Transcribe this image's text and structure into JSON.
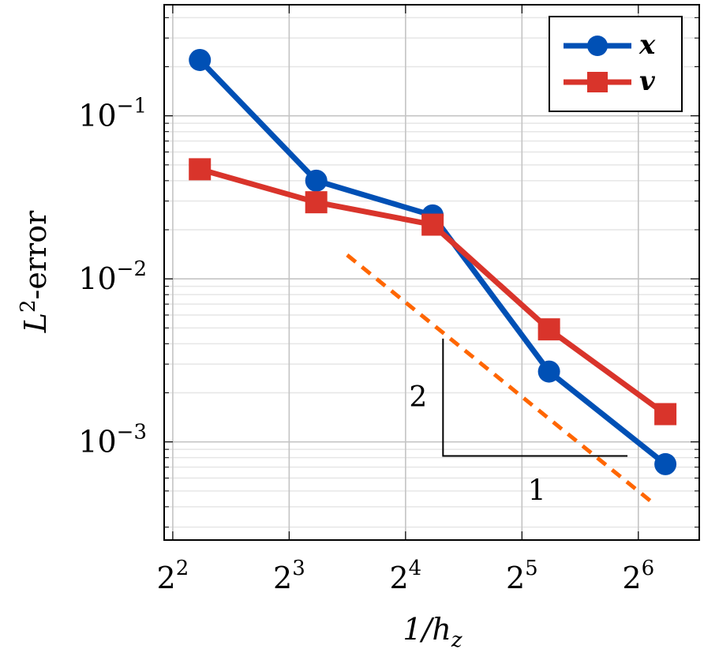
{
  "chart_data": {
    "type": "line",
    "title": "",
    "xlabel": "1/h",
    "xlabel_sub": "z",
    "ylabel": "L",
    "ylabel_sup": "2",
    "ylabel_suffix": "-error",
    "x_scale": "log2",
    "y_scale": "log10",
    "xlim": [
      3.8,
      92
    ],
    "ylim": [
      0.00025,
      0.48
    ],
    "x_ticks": [
      {
        "value": 4,
        "base": "2",
        "exp": "2"
      },
      {
        "value": 8,
        "base": "2",
        "exp": "3"
      },
      {
        "value": 16,
        "base": "2",
        "exp": "4"
      },
      {
        "value": 32,
        "base": "2",
        "exp": "5"
      },
      {
        "value": 64,
        "base": "2",
        "exp": "6"
      }
    ],
    "y_ticks": [
      {
        "value": 0.1,
        "base": "10",
        "exp": "−1"
      },
      {
        "value": 0.01,
        "base": "10",
        "exp": "−2"
      },
      {
        "value": 0.001,
        "base": "10",
        "exp": "−3"
      }
    ],
    "grid": true,
    "legend_position": "top-right",
    "x": [
      4.7,
      9.4,
      18.8,
      37.6,
      75.2
    ],
    "series": [
      {
        "name": "x",
        "marker": "circle",
        "color": "#0050b5",
        "values": [
          0.22,
          0.04,
          0.0245,
          0.0027,
          0.00073
        ]
      },
      {
        "name": "v",
        "marker": "square",
        "color": "#d9342b",
        "values": [
          0.047,
          0.0295,
          0.0215,
          0.0049,
          0.00148
        ]
      }
    ],
    "reference_line": {
      "slope": -2,
      "color": "#ff6600",
      "style": "dashed",
      "points": [
        {
          "x": 11.3,
          "y": 0.014
        },
        {
          "x": 70.0,
          "y": 0.00042
        }
      ]
    },
    "slope_triangle": {
      "rise_label": "2",
      "run_label": "1",
      "corner": {
        "x": 20.0,
        "y": 0.00082
      },
      "top": {
        "x": 20.0,
        "y": 0.0043
      },
      "run_end": {
        "x": 60.0,
        "y": 0.00082
      }
    }
  }
}
